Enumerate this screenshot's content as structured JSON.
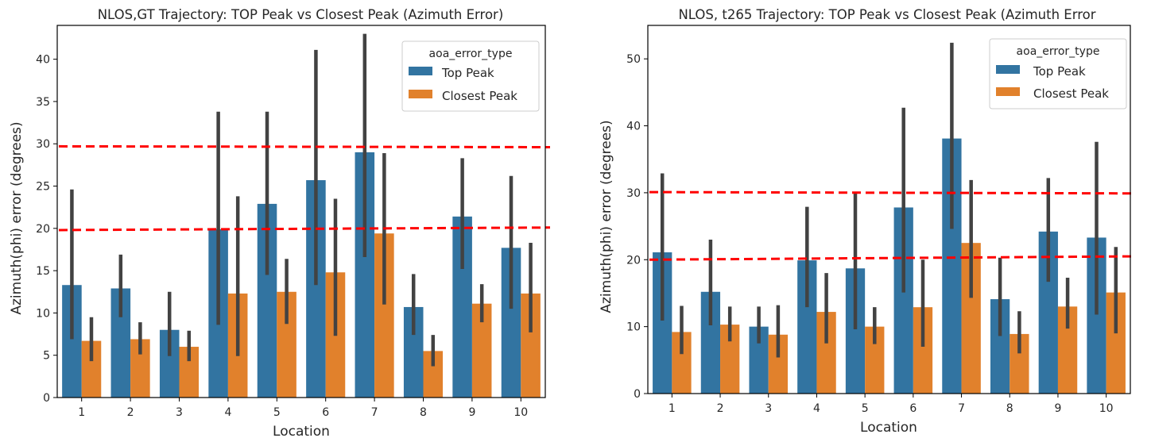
{
  "chart_data": [
    {
      "type": "bar",
      "title": "NLOS,GT Trajectory: TOP Peak vs Closest Peak (Azimuth Error)",
      "xlabel": "Location",
      "ylabel": "Azimuth(phi) error (degrees)",
      "categories": [
        "1",
        "2",
        "3",
        "4",
        "5",
        "6",
        "7",
        "8",
        "9",
        "10"
      ],
      "ylim": [
        0,
        44
      ],
      "yticks": [
        0,
        5,
        10,
        15,
        20,
        25,
        30,
        35,
        40
      ],
      "legend": {
        "title": "aoa_error_type",
        "position": "top-right"
      },
      "series": [
        {
          "name": "Top Peak",
          "color": "#3274a1",
          "values": [
            13.3,
            12.9,
            8.0,
            19.9,
            22.9,
            25.7,
            29.0,
            10.7,
            21.4,
            17.7
          ],
          "ci_low": [
            6.9,
            9.5,
            4.9,
            8.6,
            14.5,
            13.3,
            16.6,
            7.4,
            15.2,
            10.5
          ],
          "ci_high": [
            24.6,
            16.9,
            12.5,
            33.8,
            33.8,
            41.1,
            43.0,
            14.6,
            28.3,
            26.2
          ]
        },
        {
          "name": "Closest Peak",
          "color": "#e1812c",
          "values": [
            6.7,
            6.9,
            6.0,
            12.3,
            12.5,
            14.8,
            19.4,
            5.5,
            11.1,
            12.3
          ],
          "ci_low": [
            4.3,
            5.1,
            4.3,
            4.9,
            8.7,
            7.3,
            11.0,
            3.7,
            8.9,
            7.7
          ],
          "ci_high": [
            9.5,
            8.9,
            7.9,
            23.8,
            16.4,
            23.5,
            28.9,
            7.4,
            13.4,
            18.3
          ]
        }
      ],
      "reference_lines": [
        {
          "y_left": 19.8,
          "y_right": 20.1,
          "style": "dashed",
          "color": "#ff0000"
        },
        {
          "y_left": 29.7,
          "y_right": 29.6,
          "style": "dashed",
          "color": "#ff0000"
        }
      ],
      "grid": false
    },
    {
      "type": "bar",
      "title": "NLOS, t265 Trajectory: TOP Peak vs Closest Peak (Azimuth Error",
      "xlabel": "Location",
      "ylabel": "Azimuth(phi) error (degrees)",
      "categories": [
        "1",
        "2",
        "3",
        "4",
        "5",
        "6",
        "7",
        "8",
        "9",
        "10"
      ],
      "ylim": [
        0,
        55
      ],
      "yticks": [
        0,
        10,
        20,
        30,
        40,
        50
      ],
      "legend": {
        "title": "aoa_error_type",
        "position": "top-right"
      },
      "series": [
        {
          "name": "Top Peak",
          "color": "#3274a1",
          "values": [
            21.1,
            15.2,
            10.0,
            19.9,
            18.7,
            27.8,
            38.1,
            14.1,
            24.2,
            23.3
          ],
          "ci_low": [
            10.9,
            10.2,
            7.5,
            12.9,
            9.6,
            15.1,
            24.6,
            8.6,
            16.7,
            11.8
          ],
          "ci_high": [
            32.9,
            23.0,
            13.0,
            27.9,
            29.9,
            42.7,
            52.4,
            20.3,
            32.2,
            37.6
          ]
        },
        {
          "name": "Closest Peak",
          "color": "#e1812c",
          "values": [
            9.2,
            10.3,
            8.8,
            12.2,
            10.0,
            12.9,
            22.5,
            8.9,
            13.0,
            15.1
          ],
          "ci_low": [
            5.9,
            7.8,
            5.4,
            7.5,
            7.4,
            7.0,
            14.3,
            6.0,
            9.7,
            9.0
          ],
          "ci_high": [
            13.1,
            13.0,
            13.2,
            18.0,
            12.9,
            20.0,
            31.9,
            12.3,
            17.3,
            21.9
          ]
        }
      ],
      "reference_lines": [
        {
          "y_left": 20.0,
          "y_right": 20.5,
          "style": "dashed",
          "color": "#ff0000"
        },
        {
          "y_left": 30.1,
          "y_right": 29.9,
          "style": "dashed",
          "color": "#ff0000"
        }
      ],
      "grid": false
    }
  ]
}
